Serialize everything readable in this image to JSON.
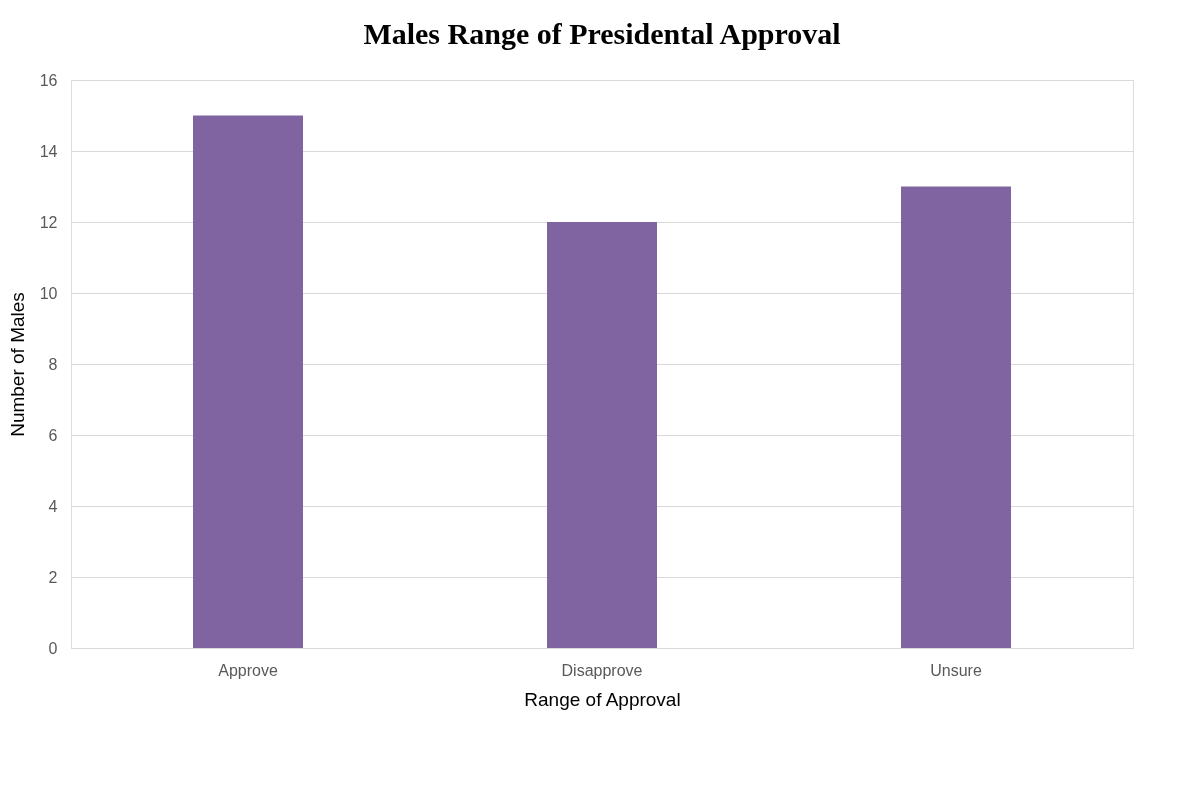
{
  "chart_data": {
    "type": "bar",
    "title": "Males Range of Presidental Approval",
    "xlabel": "Range of Approval",
    "ylabel": "Number of Males",
    "categories": [
      "Approve",
      "Disapprove",
      "Unsure"
    ],
    "values": [
      15,
      12,
      13
    ],
    "color": "#8064a2",
    "ylim": [
      0,
      16
    ],
    "yticks": [
      0,
      2,
      4,
      6,
      8,
      10,
      12,
      14,
      16
    ],
    "grid": "y"
  }
}
